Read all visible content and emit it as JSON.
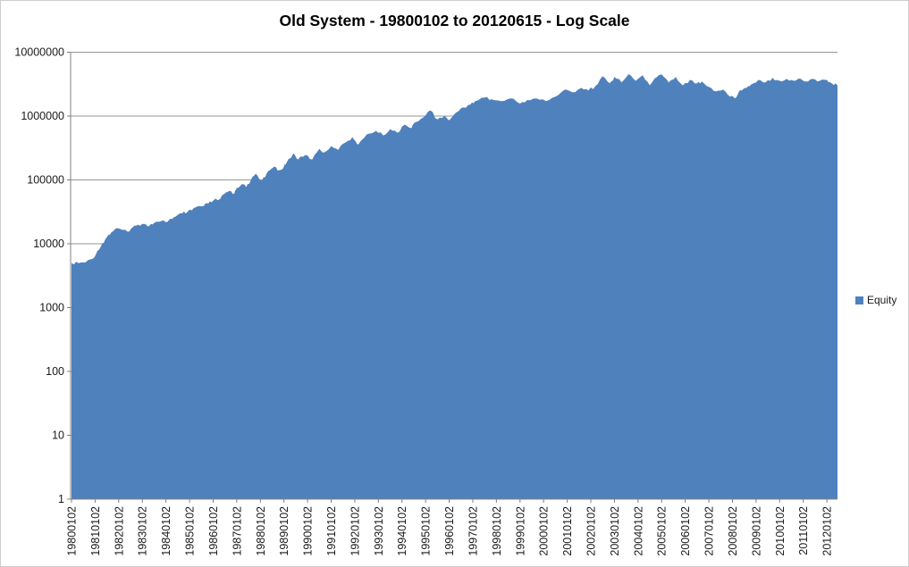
{
  "chart": {
    "title": "Old System - 19800102 to 20120615 - Log Scale",
    "legend": {
      "label": "Equity",
      "color": "#4F81BD"
    },
    "colors": {
      "area": "#4F81BD",
      "gridline": "#969696",
      "axis": "#808080",
      "text": "#1a1a1a",
      "background": "#ffffff",
      "border": "#cdcdcd"
    }
  },
  "chart_data": {
    "type": "area",
    "title": "Old System - 19800102 to 20120615 - Log Scale",
    "xlabel": "",
    "ylabel": "",
    "y_scale": "log",
    "ylim": [
      1,
      10000000
    ],
    "grid": true,
    "legend_position": "right",
    "x_range": [
      1980.0,
      2012.45
    ],
    "y_tick_labels": [
      "1",
      "10",
      "100",
      "1000",
      "10000",
      "100000",
      "1000000",
      "10000000"
    ],
    "x_tick_labels": [
      "19800102",
      "19810102",
      "19820102",
      "19830102",
      "19840102",
      "19850102",
      "19860102",
      "19870102",
      "19880102",
      "19890102",
      "19900102",
      "19910102",
      "19920102",
      "19930102",
      "19940102",
      "19950102",
      "19960102",
      "19970102",
      "19980102",
      "19990102",
      "20000102",
      "20010102",
      "20020102",
      "20030102",
      "20040102",
      "20050102",
      "20060102",
      "20070102",
      "20080102",
      "20090102",
      "20100102",
      "20110102",
      "20120102"
    ],
    "series": [
      {
        "name": "Equity",
        "color": "#4F81BD",
        "points": [
          [
            1980.0,
            5000
          ],
          [
            1980.3,
            4970
          ],
          [
            1980.6,
            5130
          ],
          [
            1980.9,
            5830
          ],
          [
            1981.1,
            7800
          ],
          [
            1981.3,
            10100
          ],
          [
            1981.5,
            12700
          ],
          [
            1981.7,
            15300
          ],
          [
            1981.9,
            17500
          ],
          [
            1982.2,
            16400
          ],
          [
            1982.4,
            15400
          ],
          [
            1982.6,
            18100
          ],
          [
            1982.8,
            19900
          ],
          [
            1983.1,
            20500
          ],
          [
            1983.3,
            19200
          ],
          [
            1983.5,
            21200
          ],
          [
            1983.8,
            22600
          ],
          [
            1984.0,
            21900
          ],
          [
            1984.2,
            24900
          ],
          [
            1984.4,
            26500
          ],
          [
            1984.7,
            30200
          ],
          [
            1984.9,
            31200
          ],
          [
            1985.1,
            33300
          ],
          [
            1985.3,
            38000
          ],
          [
            1985.6,
            39100
          ],
          [
            1985.8,
            42900
          ],
          [
            1986.0,
            47300
          ],
          [
            1986.3,
            50600
          ],
          [
            1986.5,
            61500
          ],
          [
            1986.7,
            67600
          ],
          [
            1986.9,
            61500
          ],
          [
            1987.0,
            74900
          ],
          [
            1987.2,
            85200
          ],
          [
            1987.4,
            77400
          ],
          [
            1987.6,
            99700
          ],
          [
            1987.8,
            125000
          ],
          [
            1988.0,
            99700
          ],
          [
            1988.2,
            110000
          ],
          [
            1988.4,
            142000
          ],
          [
            1988.6,
            162000
          ],
          [
            1988.8,
            142000
          ],
          [
            1989.0,
            162000
          ],
          [
            1989.1,
            184000
          ],
          [
            1989.4,
            262000
          ],
          [
            1989.6,
            209000
          ],
          [
            1989.9,
            245000
          ],
          [
            1990.2,
            209000
          ],
          [
            1990.5,
            308000
          ],
          [
            1990.7,
            270000
          ],
          [
            1991.0,
            339000
          ],
          [
            1991.3,
            295000
          ],
          [
            1991.6,
            383000
          ],
          [
            1991.9,
            468000
          ],
          [
            1992.1,
            361000
          ],
          [
            1992.3,
            424000
          ],
          [
            1992.6,
            532000
          ],
          [
            1992.9,
            588000
          ],
          [
            1993.2,
            498000
          ],
          [
            1993.5,
            625000
          ],
          [
            1993.8,
            548000
          ],
          [
            1994.1,
            735000
          ],
          [
            1994.4,
            648000
          ],
          [
            1994.6,
            809000
          ],
          [
            1994.9,
            949000
          ],
          [
            1995.2,
            1230000
          ],
          [
            1995.5,
            888000
          ],
          [
            1995.8,
            1010000
          ],
          [
            1996.0,
            857000
          ],
          [
            1996.3,
            1140000
          ],
          [
            1996.6,
            1370000
          ],
          [
            1996.9,
            1520000
          ],
          [
            1997.1,
            1720000
          ],
          [
            1997.5,
            1950000
          ],
          [
            1997.8,
            1830000
          ],
          [
            1998.2,
            1720000
          ],
          [
            1998.6,
            1890000
          ],
          [
            1999.0,
            1570000
          ],
          [
            1999.3,
            1780000
          ],
          [
            1999.7,
            1890000
          ],
          [
            2000.1,
            1720000
          ],
          [
            2000.5,
            2020000
          ],
          [
            2000.9,
            2600000
          ],
          [
            2001.2,
            2360000
          ],
          [
            2001.6,
            2770000
          ],
          [
            2001.9,
            2520000
          ],
          [
            2002.2,
            2960000
          ],
          [
            2002.5,
            4200000
          ],
          [
            2002.8,
            3260000
          ],
          [
            2003.0,
            4090000
          ],
          [
            2003.3,
            3370000
          ],
          [
            2003.6,
            4550000
          ],
          [
            2003.9,
            3570000
          ],
          [
            2004.2,
            4370000
          ],
          [
            2004.5,
            3030000
          ],
          [
            2004.8,
            4090000
          ],
          [
            2005.0,
            4520000
          ],
          [
            2005.3,
            3370000
          ],
          [
            2005.6,
            4090000
          ],
          [
            2005.9,
            3030000
          ],
          [
            2006.2,
            3680000
          ],
          [
            2006.5,
            3260000
          ],
          [
            2006.7,
            3480000
          ],
          [
            2007.0,
            2860000
          ],
          [
            2007.3,
            2430000
          ],
          [
            2007.6,
            2600000
          ],
          [
            2007.9,
            2020000
          ],
          [
            2008.1,
            1890000
          ],
          [
            2008.3,
            2520000
          ],
          [
            2008.6,
            2770000
          ],
          [
            2008.8,
            3150000
          ],
          [
            2009.1,
            3680000
          ],
          [
            2009.4,
            3370000
          ],
          [
            2009.7,
            3970000
          ],
          [
            2010.0,
            3570000
          ],
          [
            2010.3,
            3820000
          ],
          [
            2010.6,
            3570000
          ],
          [
            2010.9,
            3820000
          ],
          [
            2011.1,
            3480000
          ],
          [
            2011.4,
            3820000
          ],
          [
            2011.7,
            3570000
          ],
          [
            2012.0,
            3680000
          ],
          [
            2012.2,
            3260000
          ],
          [
            2012.45,
            3030000
          ]
        ]
      }
    ]
  }
}
